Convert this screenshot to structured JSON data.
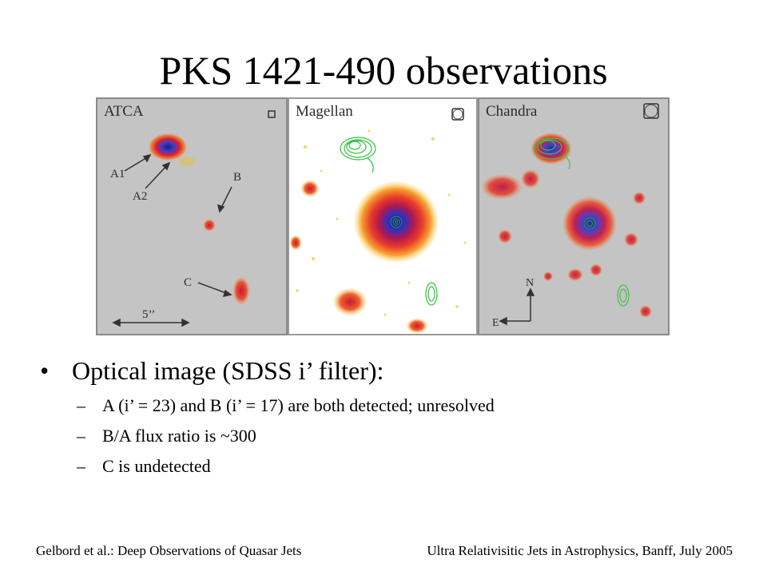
{
  "slide": {
    "title": "PKS 1421-490 observations",
    "panels": {
      "atca": {
        "label": "ATCA",
        "annotations": {
          "a1": "A1",
          "a2": "A2",
          "b": "B",
          "c": "C",
          "scale": "5’’"
        }
      },
      "magellan": {
        "label": "Magellan"
      },
      "chandra": {
        "label": "Chandra",
        "annotations": {
          "north": "N",
          "east": "E"
        }
      }
    },
    "bullet": {
      "symbol": "•",
      "text": "Optical image (SDSS i’ filter):",
      "sub_symbol": "–",
      "subitems": [
        "A (i’ = 23) and B (i’ = 17) are both detected; unresolved",
        "B/A flux ratio is ~300",
        "C is undetected"
      ]
    },
    "footer": {
      "left": "Gelbord et al.: Deep Observations of Quasar Jets",
      "right": "Ultra Relativisitic Jets in Astrophysics, Banff, July 2005"
    }
  }
}
